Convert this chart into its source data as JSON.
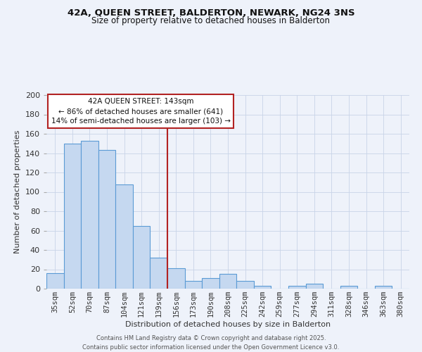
{
  "title": "42A, QUEEN STREET, BALDERTON, NEWARK, NG24 3NS",
  "subtitle": "Size of property relative to detached houses in Balderton",
  "xlabel": "Distribution of detached houses by size in Balderton",
  "ylabel": "Number of detached properties",
  "footer_line1": "Contains HM Land Registry data © Crown copyright and database right 2025.",
  "footer_line2": "Contains public sector information licensed under the Open Government Licence v3.0.",
  "categories": [
    "35sqm",
    "52sqm",
    "70sqm",
    "87sqm",
    "104sqm",
    "121sqm",
    "139sqm",
    "156sqm",
    "173sqm",
    "190sqm",
    "208sqm",
    "225sqm",
    "242sqm",
    "259sqm",
    "277sqm",
    "294sqm",
    "311sqm",
    "328sqm",
    "346sqm",
    "363sqm",
    "380sqm"
  ],
  "values": [
    16,
    150,
    153,
    143,
    108,
    65,
    32,
    21,
    8,
    11,
    15,
    8,
    3,
    0,
    3,
    5,
    0,
    3,
    0,
    3,
    0
  ],
  "bar_color": "#c5d8f0",
  "bar_edge_color": "#5b9bd5",
  "ylim": [
    0,
    200
  ],
  "yticks": [
    0,
    20,
    40,
    60,
    80,
    100,
    120,
    140,
    160,
    180,
    200
  ],
  "vline_x_index": 6.5,
  "vline_color": "#b22222",
  "annotation_title": "42A QUEEN STREET: 143sqm",
  "annotation_line1": "← 86% of detached houses are smaller (641)",
  "annotation_line2": "14% of semi-detached houses are larger (103) →",
  "annotation_box_color": "#ffffff",
  "annotation_box_edge_color": "#b22222",
  "background_color": "#eef2fa",
  "title_fontsize": 9.5,
  "subtitle_fontsize": 8.5,
  "axis_label_fontsize": 8.0,
  "tick_fontsize": 7.5,
  "annotation_fontsize": 7.5,
  "footer_fontsize": 6.0
}
